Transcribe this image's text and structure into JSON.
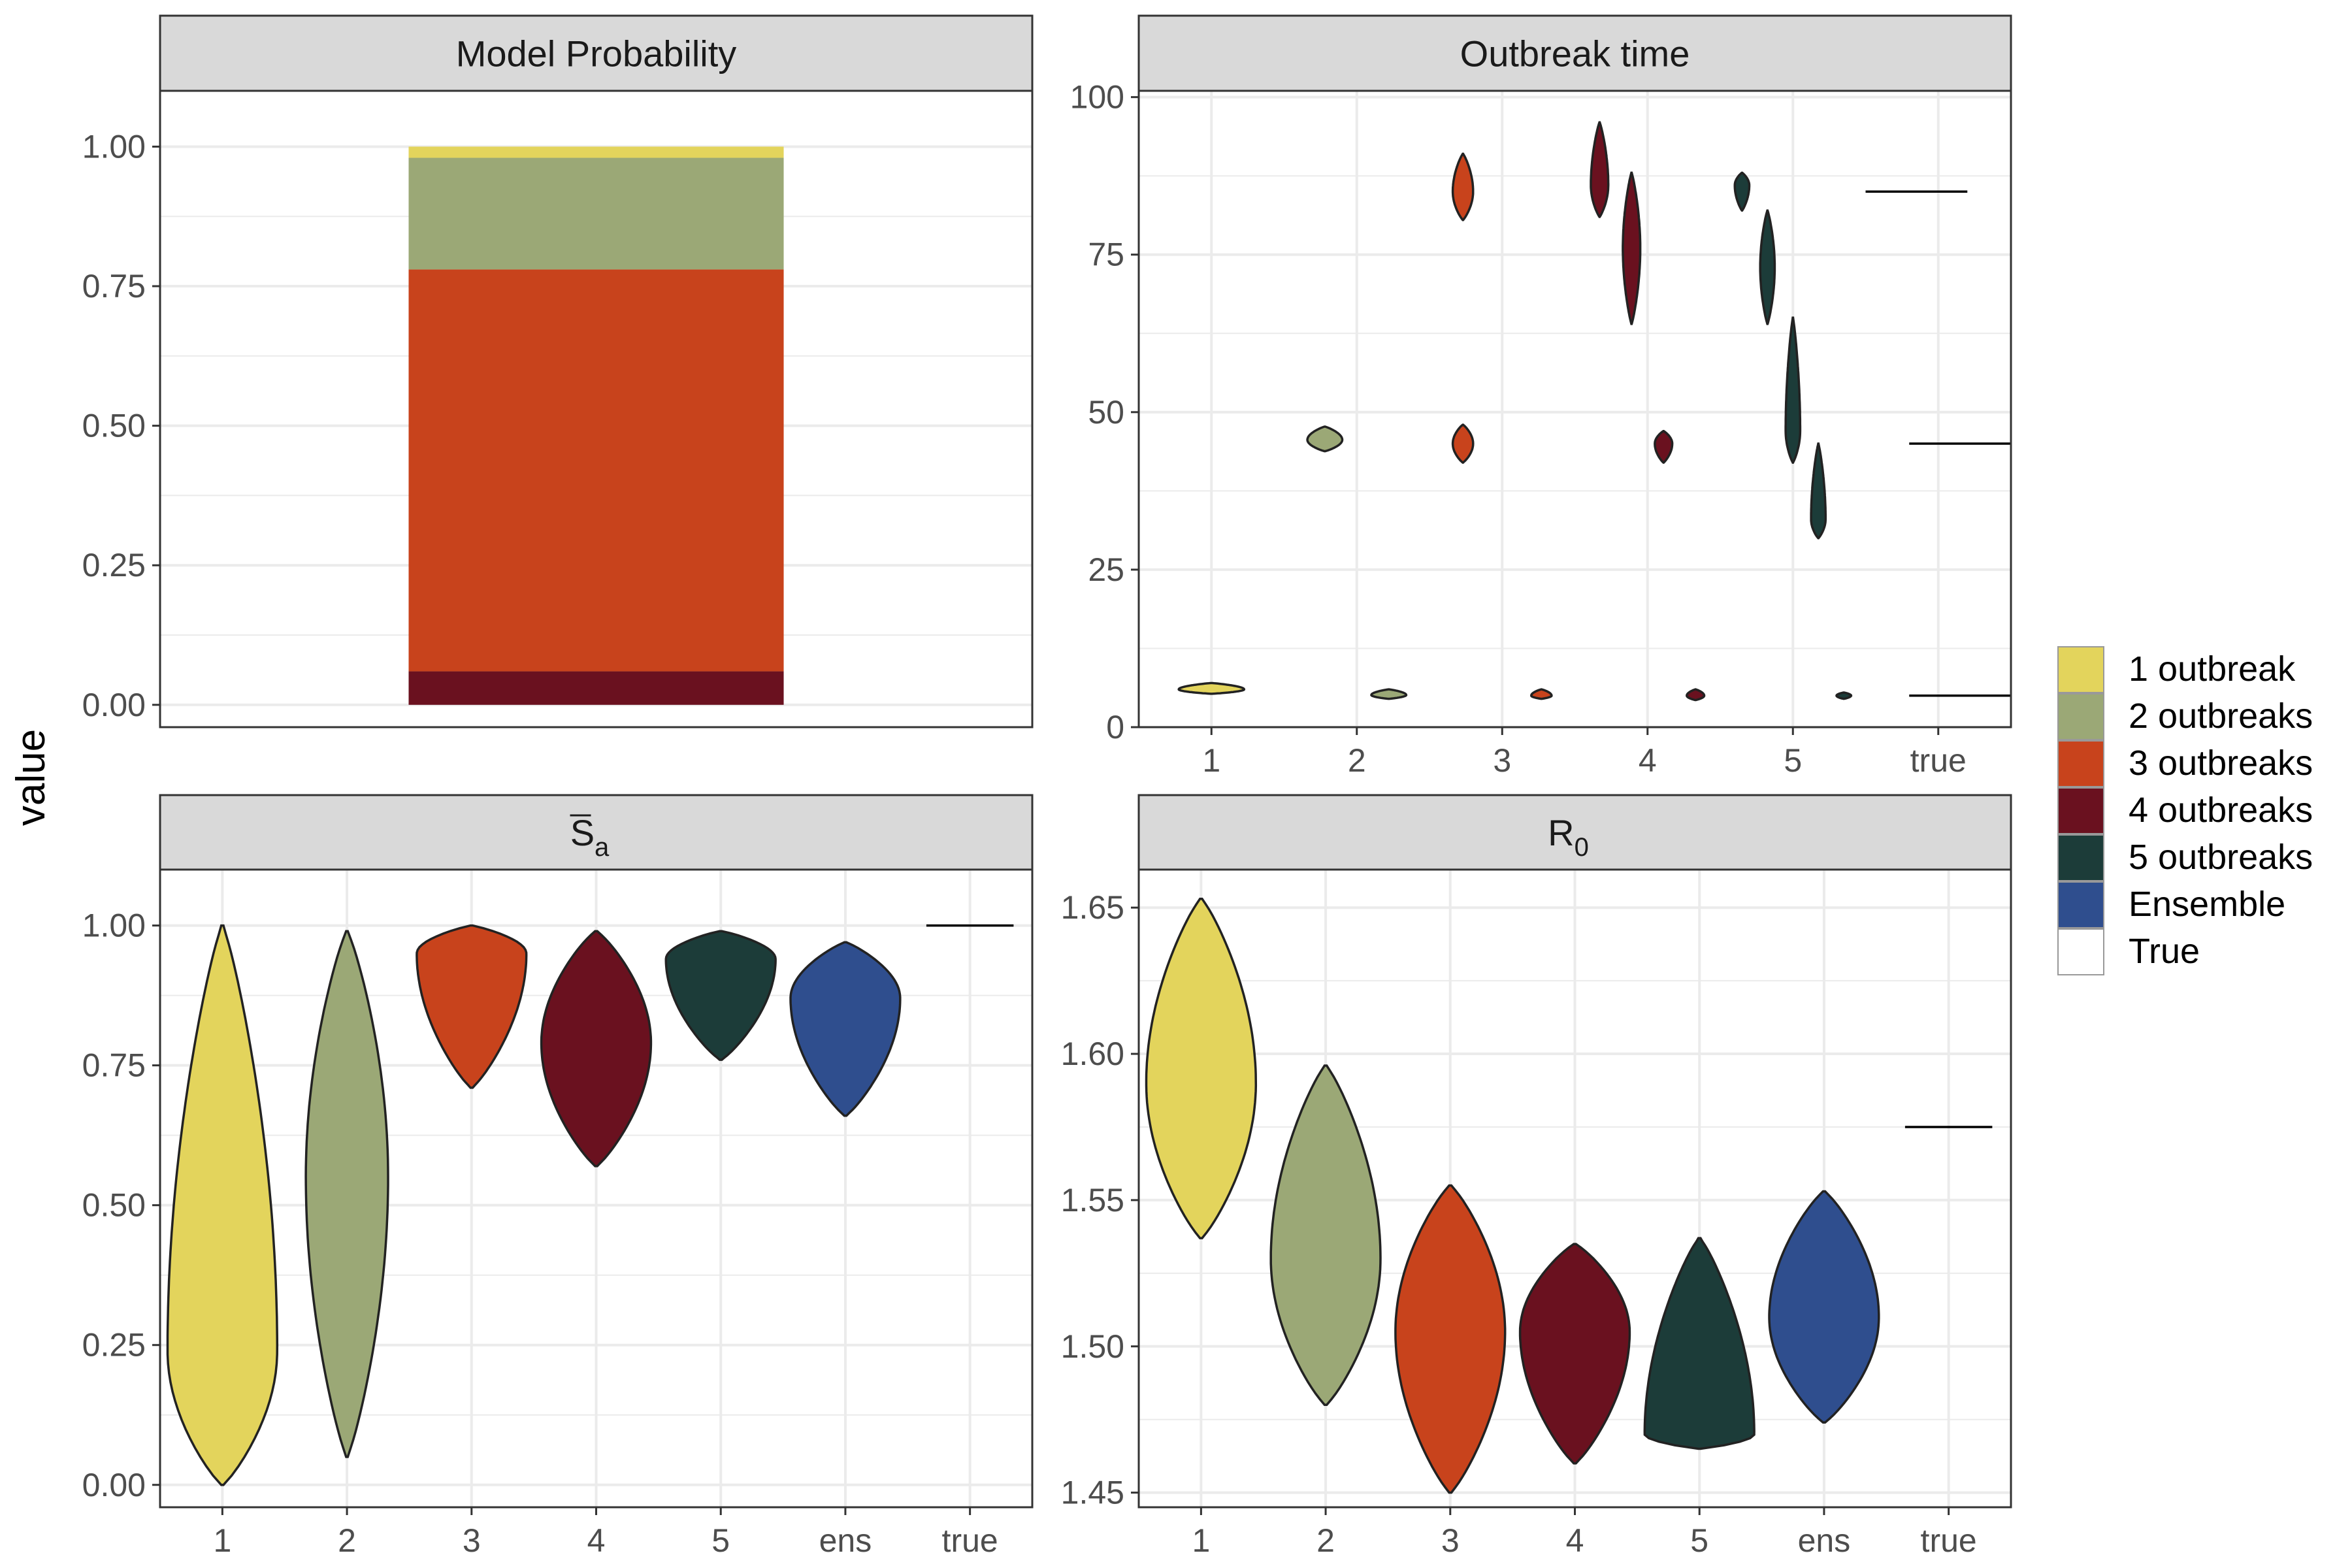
{
  "y_axis_label": "value",
  "legend": {
    "entries": [
      {
        "label": "1 outbreak",
        "color": "#E3D45C"
      },
      {
        "label": "2 outbreaks",
        "color": "#9BA876"
      },
      {
        "label": "3 outbreaks",
        "color": "#C8431C"
      },
      {
        "label": "4 outbreaks",
        "color": "#6A111F"
      },
      {
        "label": "5 outbreaks",
        "color": "#1C3C39"
      },
      {
        "label": "Ensemble",
        "color": "#2F4E8E"
      },
      {
        "label": "True",
        "color": "#FFFFFF"
      }
    ]
  },
  "chart_data": [
    {
      "id": "model-probability",
      "type": "bar",
      "stacked": true,
      "title": "Model  Probability",
      "ylim": [
        -0.04,
        1.1
      ],
      "yticks": [
        "0.00",
        "0.25",
        "0.50",
        "0.75",
        "1.00"
      ],
      "series": [
        {
          "name": "4 outbreaks",
          "value": 0.06,
          "color": "#6A111F"
        },
        {
          "name": "3 outbreaks",
          "value": 0.72,
          "color": "#C8431C"
        },
        {
          "name": "2 outbreaks",
          "value": 0.2,
          "color": "#9BA876"
        },
        {
          "name": "1 outbreak",
          "value": 0.02,
          "color": "#E3D45C"
        }
      ]
    },
    {
      "id": "outbreak-time",
      "type": "violin",
      "title": "Outbreak  time",
      "categories": [
        "1",
        "2",
        "3",
        "4",
        "5",
        "true"
      ],
      "ylim": [
        0,
        101
      ],
      "yticks": [
        "0",
        "25",
        "50",
        "75",
        "100"
      ],
      "violins": [
        {
          "cat": 0,
          "offset": 0,
          "color": "#E3D45C",
          "range": [
            5.3,
            7.0
          ],
          "mode": 6.0,
          "width": 0.45
        },
        {
          "cat": 1,
          "offset": -0.22,
          "color": "#9BA876",
          "range": [
            43.8,
            47.7
          ],
          "mode": 45.6,
          "width": 0.24
        },
        {
          "cat": 1,
          "offset": 0.22,
          "color": "#9BA876",
          "range": [
            4.5,
            6.0
          ],
          "mode": 5.1,
          "width": 0.24
        },
        {
          "cat": 2,
          "offset": -0.27,
          "color": "#C8431C",
          "range": [
            80.5,
            91.0
          ],
          "mode": 85.0,
          "width": 0.14
        },
        {
          "cat": 2,
          "offset": -0.27,
          "color": "#C8431C",
          "range": [
            42.0,
            48.0
          ],
          "mode": 45.0,
          "width": 0.14
        },
        {
          "cat": 2,
          "offset": 0.27,
          "color": "#C8431C",
          "range": [
            4.5,
            6.0
          ],
          "mode": 5.0,
          "width": 0.14
        },
        {
          "cat": 3,
          "offset": -0.33,
          "color": "#6A111F",
          "range": [
            81.0,
            96.0
          ],
          "mode": 86.0,
          "width": 0.12
        },
        {
          "cat": 3,
          "offset": -0.11,
          "color": "#6A111F",
          "range": [
            64.0,
            88.0
          ],
          "mode": 76.0,
          "width": 0.12
        },
        {
          "cat": 3,
          "offset": 0.11,
          "color": "#6A111F",
          "range": [
            42.0,
            47.0
          ],
          "mode": 45.0,
          "width": 0.12
        },
        {
          "cat": 3,
          "offset": 0.33,
          "color": "#6A111F",
          "range": [
            4.3,
            6.0
          ],
          "mode": 5.0,
          "width": 0.12
        },
        {
          "cat": 4,
          "offset": -0.35,
          "color": "#1C3C39",
          "range": [
            82.0,
            88.0
          ],
          "mode": 86.0,
          "width": 0.1
        },
        {
          "cat": 4,
          "offset": -0.175,
          "color": "#1C3C39",
          "range": [
            64.0,
            82.0
          ],
          "mode": 73.0,
          "width": 0.1
        },
        {
          "cat": 4,
          "offset": 0,
          "color": "#1C3C39",
          "range": [
            42.0,
            65.0
          ],
          "mode": 47.0,
          "width": 0.1
        },
        {
          "cat": 4,
          "offset": 0.175,
          "color": "#1C3C39",
          "range": [
            30.0,
            45.0
          ],
          "mode": 33.0,
          "width": 0.1
        },
        {
          "cat": 4,
          "offset": 0.35,
          "color": "#1C3C39",
          "range": [
            4.5,
            5.5
          ],
          "mode": 5.0,
          "width": 0.1
        }
      ],
      "true_lines": [
        {
          "cat": 5,
          "offset": -0.15,
          "value": 85
        },
        {
          "cat": 5,
          "offset": 0.15,
          "value": 45
        },
        {
          "cat": 5,
          "offset": 0.15,
          "value": 5
        }
      ]
    },
    {
      "id": "s-bar-a",
      "type": "violin",
      "title_main": "S",
      "title_sub": "a",
      "categories": [
        "1",
        "2",
        "3",
        "4",
        "5",
        "ens",
        "true"
      ],
      "ylim": [
        -0.04,
        1.1
      ],
      "yticks": [
        "0.00",
        "0.25",
        "0.50",
        "0.75",
        "1.00"
      ],
      "violins": [
        {
          "cat": 0,
          "offset": 0,
          "color": "#E3D45C",
          "range": [
            0.0,
            1.0
          ],
          "mode": 0.24,
          "width": 0.88
        },
        {
          "cat": 1,
          "offset": 0,
          "color": "#9BA876",
          "range": [
            0.05,
            0.99
          ],
          "mode": 0.55,
          "width": 0.66
        },
        {
          "cat": 2,
          "offset": 0,
          "color": "#C8431C",
          "range": [
            0.71,
            1.0
          ],
          "mode": 0.95,
          "width": 0.88
        },
        {
          "cat": 3,
          "offset": 0,
          "color": "#6A111F",
          "range": [
            0.57,
            0.99
          ],
          "mode": 0.79,
          "width": 0.88
        },
        {
          "cat": 4,
          "offset": 0,
          "color": "#1C3C39",
          "range": [
            0.76,
            0.99
          ],
          "mode": 0.94,
          "width": 0.88
        },
        {
          "cat": 5,
          "offset": 0,
          "color": "#2F4E8E",
          "range": [
            0.66,
            0.97
          ],
          "mode": 0.87,
          "width": 0.88
        }
      ],
      "true_lines": [
        {
          "cat": 6,
          "offset": 0,
          "value": 1.0
        }
      ]
    },
    {
      "id": "r0",
      "type": "violin",
      "title_main": "R",
      "title_sub": "0",
      "categories": [
        "1",
        "2",
        "3",
        "4",
        "5",
        "ens",
        "true"
      ],
      "ylim": [
        1.445,
        1.663
      ],
      "yticks": [
        "1.45",
        "1.50",
        "1.55",
        "1.60",
        "1.65"
      ],
      "violins": [
        {
          "cat": 0,
          "offset": 0,
          "color": "#E3D45C",
          "range": [
            1.537,
            1.653
          ],
          "mode": 1.59,
          "width": 0.88
        },
        {
          "cat": 1,
          "offset": 0,
          "color": "#9BA876",
          "range": [
            1.48,
            1.596
          ],
          "mode": 1.53,
          "width": 0.88
        },
        {
          "cat": 2,
          "offset": 0,
          "color": "#C8431C",
          "range": [
            1.45,
            1.555
          ],
          "mode": 1.505,
          "width": 0.88
        },
        {
          "cat": 3,
          "offset": 0,
          "color": "#6A111F",
          "range": [
            1.46,
            1.535
          ],
          "mode": 1.505,
          "width": 0.88
        },
        {
          "cat": 4,
          "offset": 0,
          "color": "#1C3C39",
          "range": [
            1.465,
            1.537
          ],
          "mode": 1.47,
          "width": 0.88
        },
        {
          "cat": 5,
          "offset": 0,
          "color": "#2F4E8E",
          "range": [
            1.474,
            1.553
          ],
          "mode": 1.51,
          "width": 0.88
        }
      ],
      "true_lines": [
        {
          "cat": 6,
          "offset": 0,
          "value": 1.575
        }
      ]
    }
  ]
}
